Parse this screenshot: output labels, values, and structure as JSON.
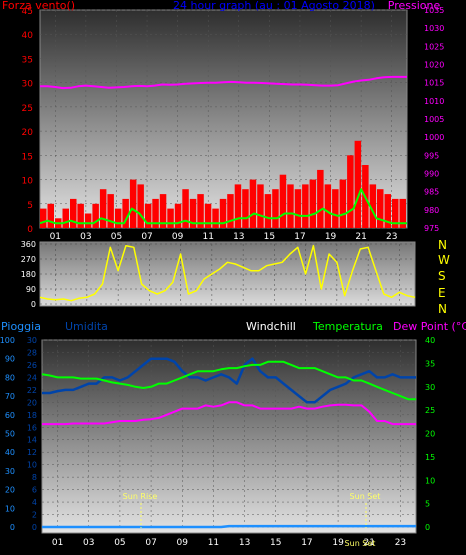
{
  "colors": {
    "wind": "#ff0000",
    "gust": "#00ff00",
    "pressure": "#ff00ff",
    "title": "#0000ff",
    "direction": "#ffff00",
    "humidity": "#0044aa",
    "rain": "#1e90ff",
    "temperature": "#00ff00",
    "dewpoint": "#ff00ff",
    "windchill": "#ffffff"
  },
  "header": {
    "wind_label": "Forza vento()",
    "title": "24 hour graph (au : 01 Agosto 2018)",
    "pressure_label": "Pressione"
  },
  "middle": {
    "compass_letters": [
      "N",
      "W",
      "S",
      "E",
      "N"
    ]
  },
  "bottom": {
    "rain_label": "Pioggia",
    "humidity_label": "Umidita",
    "windchill_label": "Windchill",
    "temperature_label": "Temperatura",
    "dewpoint_label": "Dew Point (°C)",
    "sunrise_label": "Sun Rise",
    "sunset_label": "Sun Set"
  },
  "chart_data": [
    {
      "type": "line",
      "name": "wind-pressure",
      "x_ticks": [
        "01",
        "03",
        "05",
        "07",
        "09",
        "11",
        "13",
        "15",
        "17",
        "19",
        "21",
        "23"
      ],
      "ylim_left": [
        0,
        45
      ],
      "yticks_left": [
        0,
        5,
        10,
        15,
        20,
        25,
        30,
        35,
        40,
        45
      ],
      "ylim_right": [
        975,
        1035
      ],
      "yticks_right": [
        975,
        980,
        985,
        990,
        995,
        1000,
        1005,
        1010,
        1015,
        1020,
        1025,
        1030,
        1035
      ],
      "series": [
        {
          "key": "wind",
          "values": [
            4,
            5,
            2,
            4,
            6,
            5,
            3,
            5,
            8,
            7,
            4,
            6,
            10,
            9,
            5,
            6,
            7,
            4,
            5,
            8,
            6,
            7,
            5,
            4,
            6,
            7,
            9,
            8,
            10,
            9,
            7,
            8,
            11,
            9,
            8,
            9,
            10,
            12,
            9,
            8,
            10,
            15,
            18,
            13,
            9,
            8,
            7,
            6,
            6
          ]
        },
        {
          "key": "gust",
          "values": [
            1,
            1.5,
            1,
            1,
            1.5,
            1,
            1,
            1,
            2,
            1.5,
            1,
            1,
            4,
            3,
            1,
            1,
            1,
            1,
            1,
            1.5,
            1,
            1,
            1,
            1,
            1,
            1.5,
            2,
            2,
            3,
            2.5,
            2,
            2,
            3,
            3,
            2.5,
            2.5,
            3,
            4,
            3,
            2.5,
            3,
            4,
            8,
            5,
            2,
            1.5,
            1,
            1,
            1
          ]
        },
        {
          "key": "pressure",
          "values": [
            1014,
            1014,
            1013.8,
            1013.5,
            1013.6,
            1014,
            1014.2,
            1014,
            1013.8,
            1013.6,
            1013.7,
            1013.8,
            1014,
            1014.1,
            1014,
            1014.2,
            1014.5,
            1014.4,
            1014.5,
            1014.7,
            1014.8,
            1014.9,
            1015,
            1015,
            1015.1,
            1015.2,
            1015.1,
            1015,
            1015,
            1014.9,
            1014.8,
            1014.7,
            1014.6,
            1014.5,
            1014.5,
            1014.4,
            1014.3,
            1014.2,
            1014.2,
            1014.3,
            1014.8,
            1015.3,
            1015.6,
            1015.8,
            1016.2,
            1016.5,
            1016.6,
            1016.6,
            1016.6
          ]
        }
      ]
    },
    {
      "type": "line",
      "name": "wind-direction",
      "x_ticks": [
        "01",
        "03",
        "05",
        "07",
        "09",
        "11",
        "13",
        "15",
        "17",
        "19",
        "21",
        "23"
      ],
      "ylim": [
        0,
        360
      ],
      "yticks": [
        0,
        45,
        90,
        135,
        180,
        225,
        270,
        315,
        360
      ],
      "series": [
        {
          "key": "direction",
          "values": [
            40,
            30,
            25,
            30,
            20,
            35,
            40,
            60,
            120,
            340,
            200,
            350,
            340,
            120,
            80,
            60,
            80,
            130,
            300,
            60,
            80,
            150,
            180,
            210,
            250,
            240,
            220,
            200,
            200,
            230,
            240,
            250,
            300,
            340,
            180,
            350,
            90,
            300,
            250,
            50,
            200,
            330,
            340,
            200,
            60,
            40,
            70,
            50,
            40
          ]
        }
      ]
    },
    {
      "type": "line",
      "name": "temperature-humidity-rain",
      "x_ticks": [
        "01",
        "03",
        "05",
        "07",
        "09",
        "11",
        "13",
        "15",
        "17",
        "19",
        "21",
        "23"
      ],
      "ylim_rain": [
        0,
        100
      ],
      "yticks_rain": [
        0,
        10,
        20,
        30,
        40,
        50,
        60,
        70,
        80,
        90,
        100
      ],
      "ylim_temp": [
        0,
        30
      ],
      "yticks_temp": [
        0,
        2,
        4,
        6,
        8,
        10,
        12,
        14,
        16,
        18,
        20,
        22,
        24,
        26,
        28,
        30
      ],
      "ylim_right": [
        0,
        40
      ],
      "yticks_right": [
        0,
        5,
        10,
        15,
        20,
        25,
        30,
        35,
        40
      ],
      "series": [
        {
          "key": "humidity",
          "values": [
            21.5,
            21.5,
            21.8,
            22,
            22,
            22.5,
            23,
            23,
            24,
            24,
            23.5,
            24,
            25,
            26,
            27,
            27,
            27,
            26.5,
            25,
            24,
            24,
            23.5,
            24,
            24.5,
            24,
            23,
            26,
            27,
            25,
            24,
            24,
            23,
            22,
            21,
            20,
            20,
            21,
            22,
            22.5,
            23,
            24,
            24.5,
            25,
            24,
            24,
            24.5,
            24,
            24,
            24
          ]
        },
        {
          "key": "temperature",
          "values": [
            24.5,
            24.3,
            24,
            24,
            24,
            23.8,
            23.8,
            23.8,
            23.5,
            23.2,
            23,
            22.8,
            22.5,
            22.3,
            22.5,
            23,
            23,
            23.5,
            24,
            24.5,
            25,
            25,
            25,
            25.3,
            25.5,
            25.5,
            25.8,
            26,
            26,
            26.5,
            26.5,
            26.5,
            26,
            25.5,
            25.5,
            25.5,
            25,
            24.5,
            24,
            24,
            23.5,
            23.5,
            23,
            22.5,
            22,
            21.5,
            21,
            20.5,
            20.5
          ]
        },
        {
          "key": "dewpoint",
          "values": [
            16.5,
            16.5,
            16.5,
            16.5,
            16.6,
            16.6,
            16.6,
            16.6,
            16.6,
            16.8,
            17,
            17,
            17,
            17.2,
            17.3,
            17.5,
            18,
            18.5,
            19,
            19,
            19,
            19.5,
            19.3,
            19.5,
            20,
            20,
            19.5,
            19.5,
            19,
            19,
            19,
            19,
            19,
            19.3,
            19,
            19,
            19.3,
            19.5,
            19.6,
            19.6,
            19.5,
            19.5,
            18.5,
            17,
            17,
            16.5,
            16.5,
            16.5,
            16.5
          ]
        },
        {
          "key": "rain",
          "values": [
            0,
            0,
            0,
            0,
            0,
            0,
            0,
            0,
            0,
            0,
            0,
            0,
            0,
            0,
            0,
            0,
            0,
            0,
            0,
            0,
            0,
            0,
            0,
            0,
            0.5,
            0.5,
            0.5,
            0.5,
            0.5,
            0.5,
            0.5,
            0.5,
            0.5,
            0.5,
            0.5,
            0.5,
            0.5,
            0.5,
            0.5,
            0.5,
            0.5,
            0.5,
            0.5,
            0.5,
            0.5,
            0.5,
            0.5,
            0.5,
            0.5
          ]
        }
      ]
    }
  ]
}
